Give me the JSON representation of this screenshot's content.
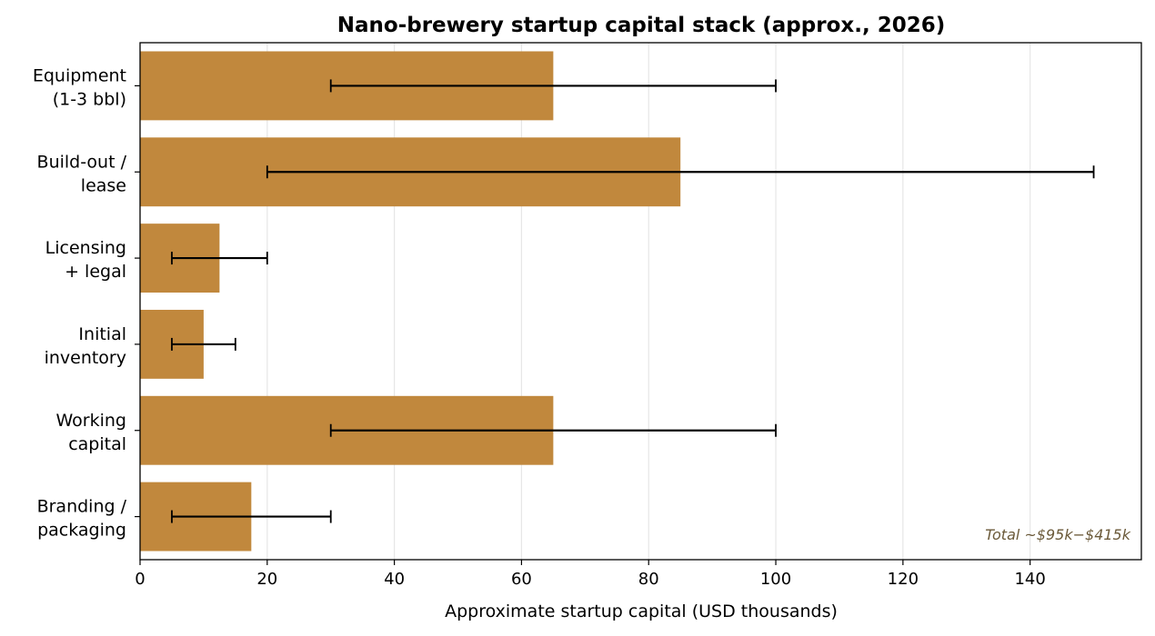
{
  "chart_data": {
    "type": "bar",
    "orientation": "horizontal",
    "title": "Nano-brewery startup capital stack (approx., 2026)",
    "xlabel": "Approximate startup capital (USD thousands)",
    "ylabel": "",
    "xlim": [
      0,
      157.5
    ],
    "xticks": [
      0,
      20,
      40,
      60,
      80,
      100,
      120,
      140
    ],
    "grid": "vertical",
    "categories": [
      [
        "Equipment",
        "(1-3 bbl)"
      ],
      [
        "Build-out /",
        "lease"
      ],
      [
        "Licensing",
        "+ legal"
      ],
      [
        "Initial",
        "inventory"
      ],
      [
        "Working",
        "capital"
      ],
      [
        "Branding /",
        "packaging"
      ]
    ],
    "values": [
      65,
      85,
      12.5,
      10,
      65,
      17.5
    ],
    "error_ranges": [
      [
        30,
        100
      ],
      [
        20,
        150
      ],
      [
        5,
        20
      ],
      [
        5,
        15
      ],
      [
        30,
        100
      ],
      [
        5,
        30
      ]
    ],
    "annotation": "Total ~$95k−$415k",
    "colors": {
      "bar": "#c1883d",
      "error_bar": "#000000",
      "grid": "#e6e6e6",
      "annotation": "#6b5a3a"
    }
  }
}
